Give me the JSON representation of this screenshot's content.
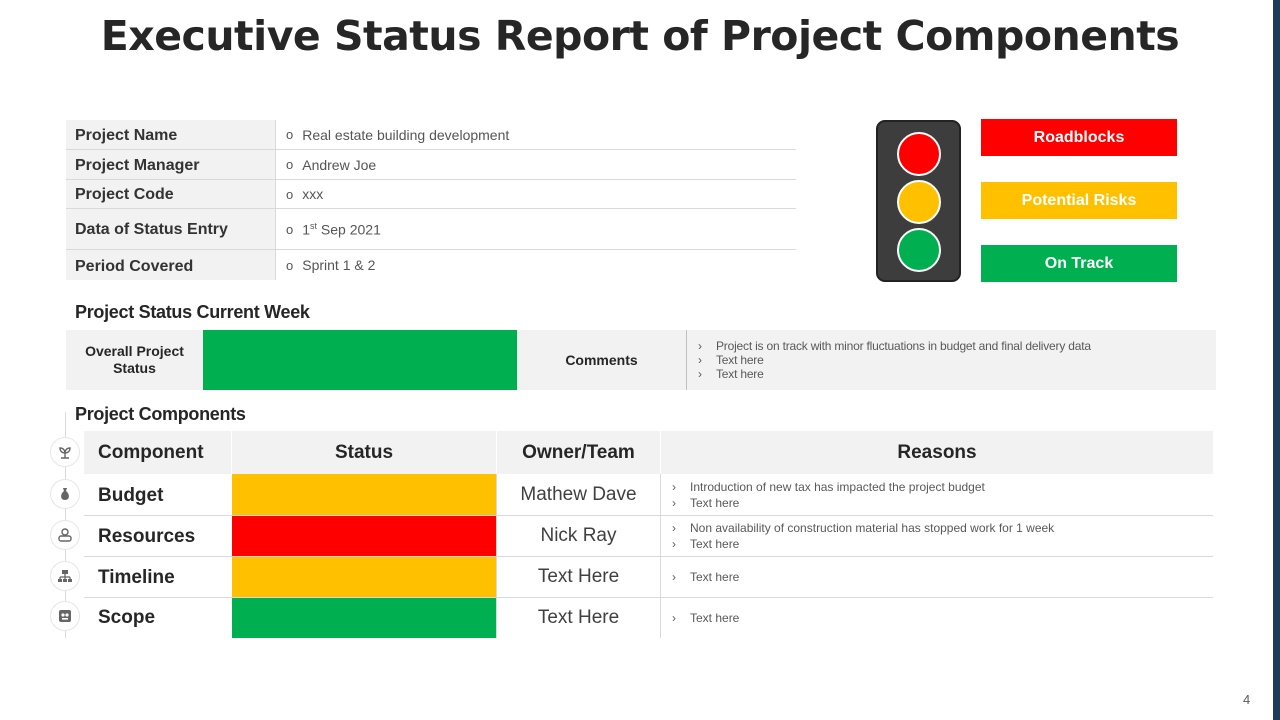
{
  "title": "Executive Status Report of Project Components",
  "info": {
    "rows": [
      {
        "label": "Project Name",
        "value": "Real estate building development"
      },
      {
        "label": "Project Manager",
        "value": "Andrew Joe"
      },
      {
        "label": "Project Code",
        "value": "xxx"
      },
      {
        "label": "Data of Status Entry",
        "value_prefix": "1",
        "value_sup": "st",
        "value_suffix": " Sep 2021"
      },
      {
        "label": "Period Covered",
        "value": "Sprint 1 & 2"
      }
    ],
    "bullet": "o"
  },
  "legend": {
    "roadblocks": "Roadblocks",
    "potential_risks": "Potential Risks",
    "on_track": "On Track",
    "colors": {
      "red": "#ff0000",
      "amber": "#ffc000",
      "green": "#00b050"
    }
  },
  "current_week": {
    "heading": "Project Status Current Week",
    "overall_label": "Overall Project Status",
    "overall_status_color": "#00b050",
    "comments_label": "Comments",
    "comments": [
      "Project is on track with minor fluctuations in budget and final delivery data",
      "Text here",
      "Text here"
    ]
  },
  "components": {
    "heading": "Project Components",
    "columns": [
      "Component",
      "Status",
      "Owner/Team",
      "Reasons"
    ],
    "rows": [
      {
        "name": "Budget",
        "status_color": "#ffc000",
        "owner": "Mathew Dave",
        "reasons": [
          "Introduction  of new tax has impacted the project budget",
          "Text here"
        ],
        "icon": "money-bag-icon"
      },
      {
        "name": "Resources",
        "status_color": "#ff0000",
        "owner": "Nick Ray",
        "reasons": [
          "Non availability  of construction material has stopped work for 1 week",
          "Text here"
        ],
        "icon": "team-icon"
      },
      {
        "name": "Timeline",
        "status_color": "#ffc000",
        "owner": "Text Here",
        "reasons": [
          "Text here"
        ],
        "icon": "hierarchy-icon"
      },
      {
        "name": "Scope",
        "status_color": "#00b050",
        "owner": "Text Here",
        "reasons": [
          "Text here"
        ],
        "icon": "scope-icon"
      }
    ],
    "header_icon": "plant-icon"
  },
  "page_number": "4"
}
